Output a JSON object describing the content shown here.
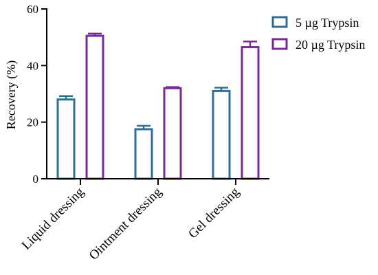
{
  "chart_data": {
    "type": "bar",
    "categories": [
      "Liquid dressing",
      "Ointment dressing",
      "Gel dressing"
    ],
    "series": [
      {
        "name": "5 µg Trypsin",
        "color": "#2e6f95",
        "values": [
          28,
          17.5,
          31
        ],
        "errors": [
          1.2,
          1.2,
          1.2
        ]
      },
      {
        "name": "20 µg Trypsin",
        "color": "#7a2a96",
        "values": [
          50.5,
          32,
          46.5
        ],
        "errors": [
          0.8,
          0.4,
          2.0
        ]
      }
    ],
    "ylabel": "Recovery  (%)",
    "ylim": [
      0,
      60
    ],
    "yticks": [
      "0",
      "20",
      "40",
      "60"
    ],
    "ytick_values": [
      0,
      20,
      40,
      60
    ],
    "grid": false,
    "legend_position": "top-right"
  }
}
